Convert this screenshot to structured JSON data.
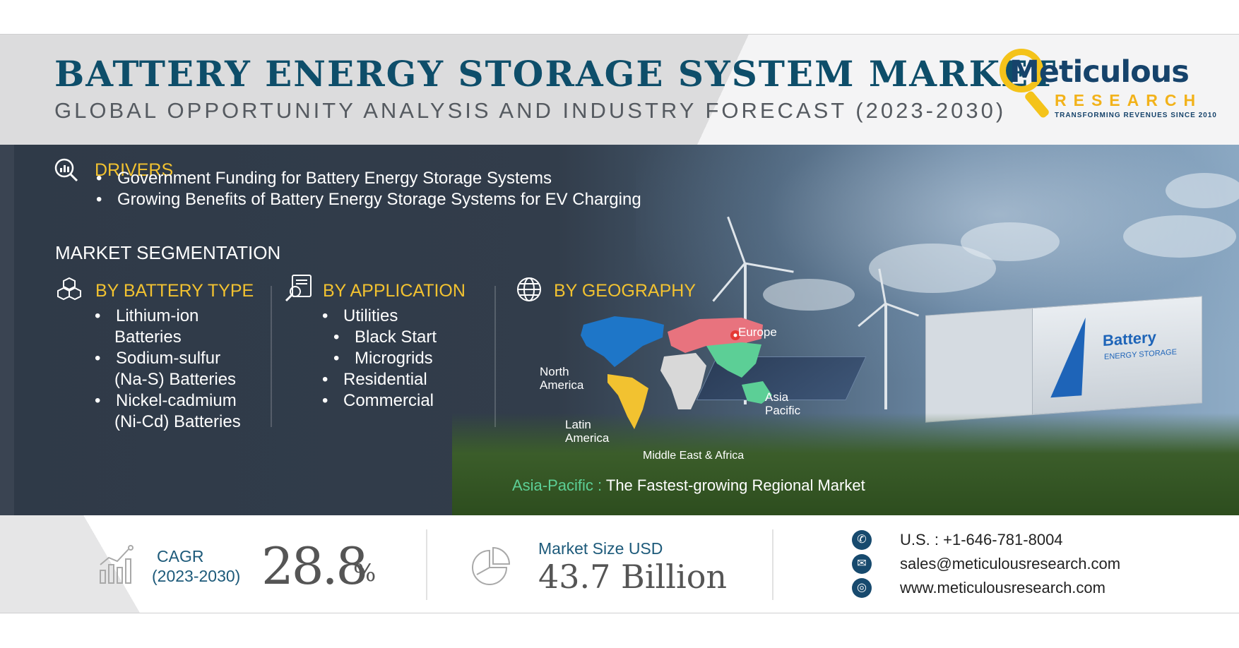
{
  "header": {
    "title": "BATTERY ENERGY STORAGE SYSTEM MARKET",
    "subtitle": "GLOBAL OPPORTUNITY ANALYSIS AND INDUSTRY FORECAST (2023-2030)"
  },
  "logo": {
    "word": "Meticulous",
    "sub": "RESEARCH",
    "tagline": "TRANSFORMING REVENUES SINCE 2010"
  },
  "drivers": {
    "heading": "DRIVERS",
    "items": [
      "Government Funding for Battery Energy Storage Systems",
      "Growing Benefits of Battery Energy Storage Systems for EV Charging"
    ]
  },
  "segmentation": {
    "heading": "MARKET SEGMENTATION",
    "battery_type": {
      "heading": "BY BATTERY TYPE",
      "items": [
        {
          "line1": "Lithium-ion",
          "line2": "Batteries"
        },
        {
          "line1": "Sodium-sulfur",
          "line2": "(Na-S) Batteries"
        },
        {
          "line1": "Nickel-cadmium",
          "line2": "(Ni-Cd) Batteries"
        }
      ]
    },
    "application": {
      "heading": "BY APPLICATION",
      "items": [
        "Utilities",
        "Black Start",
        "Microgrids",
        "Residential",
        "Commercial"
      ]
    },
    "geography": {
      "heading": "BY GEOGRAPHY",
      "regions": {
        "north_america_1": "North",
        "north_america_2": "America",
        "europe": "Europe",
        "asia_pacific_1": "Asia",
        "asia_pacific_2": "Pacific",
        "latin_america_1": "Latin",
        "latin_america_2": "America",
        "mea": "Middle East & Africa"
      },
      "highlight_region": "Asia-Pacific :",
      "highlight_text": "The Fastest-growing Regional Market"
    }
  },
  "banner": {
    "label": "Battery",
    "sublabel": "ENERGY STORAGE"
  },
  "footer": {
    "cagr_label": "CAGR",
    "cagr_period": "(2023-2030)",
    "cagr_value": "28.8",
    "cagr_unit": "%",
    "size_label": "Market Size USD",
    "size_value": "43.7 Billion",
    "phone": "U.S. : +1-646-781-8004",
    "email": "sales@meticulousresearch.com",
    "website": "www.meticulousresearch.com"
  },
  "colors": {
    "title": "#0e4e6a",
    "accent_yellow": "#f2c230",
    "asia_pacific_green": "#5ccf96",
    "europe_pink": "#e8737e",
    "north_america_blue": "#1e76c8",
    "latin_america_yellow": "#f2c230",
    "mea_grey": "#d8d8d8"
  },
  "icons": [
    "magnifier-chart-icon",
    "cubes-icon",
    "document-search-icon",
    "globe-icon",
    "bar-chart-icon",
    "pie-chart-icon",
    "phone-icon",
    "mail-icon",
    "web-icon"
  ]
}
